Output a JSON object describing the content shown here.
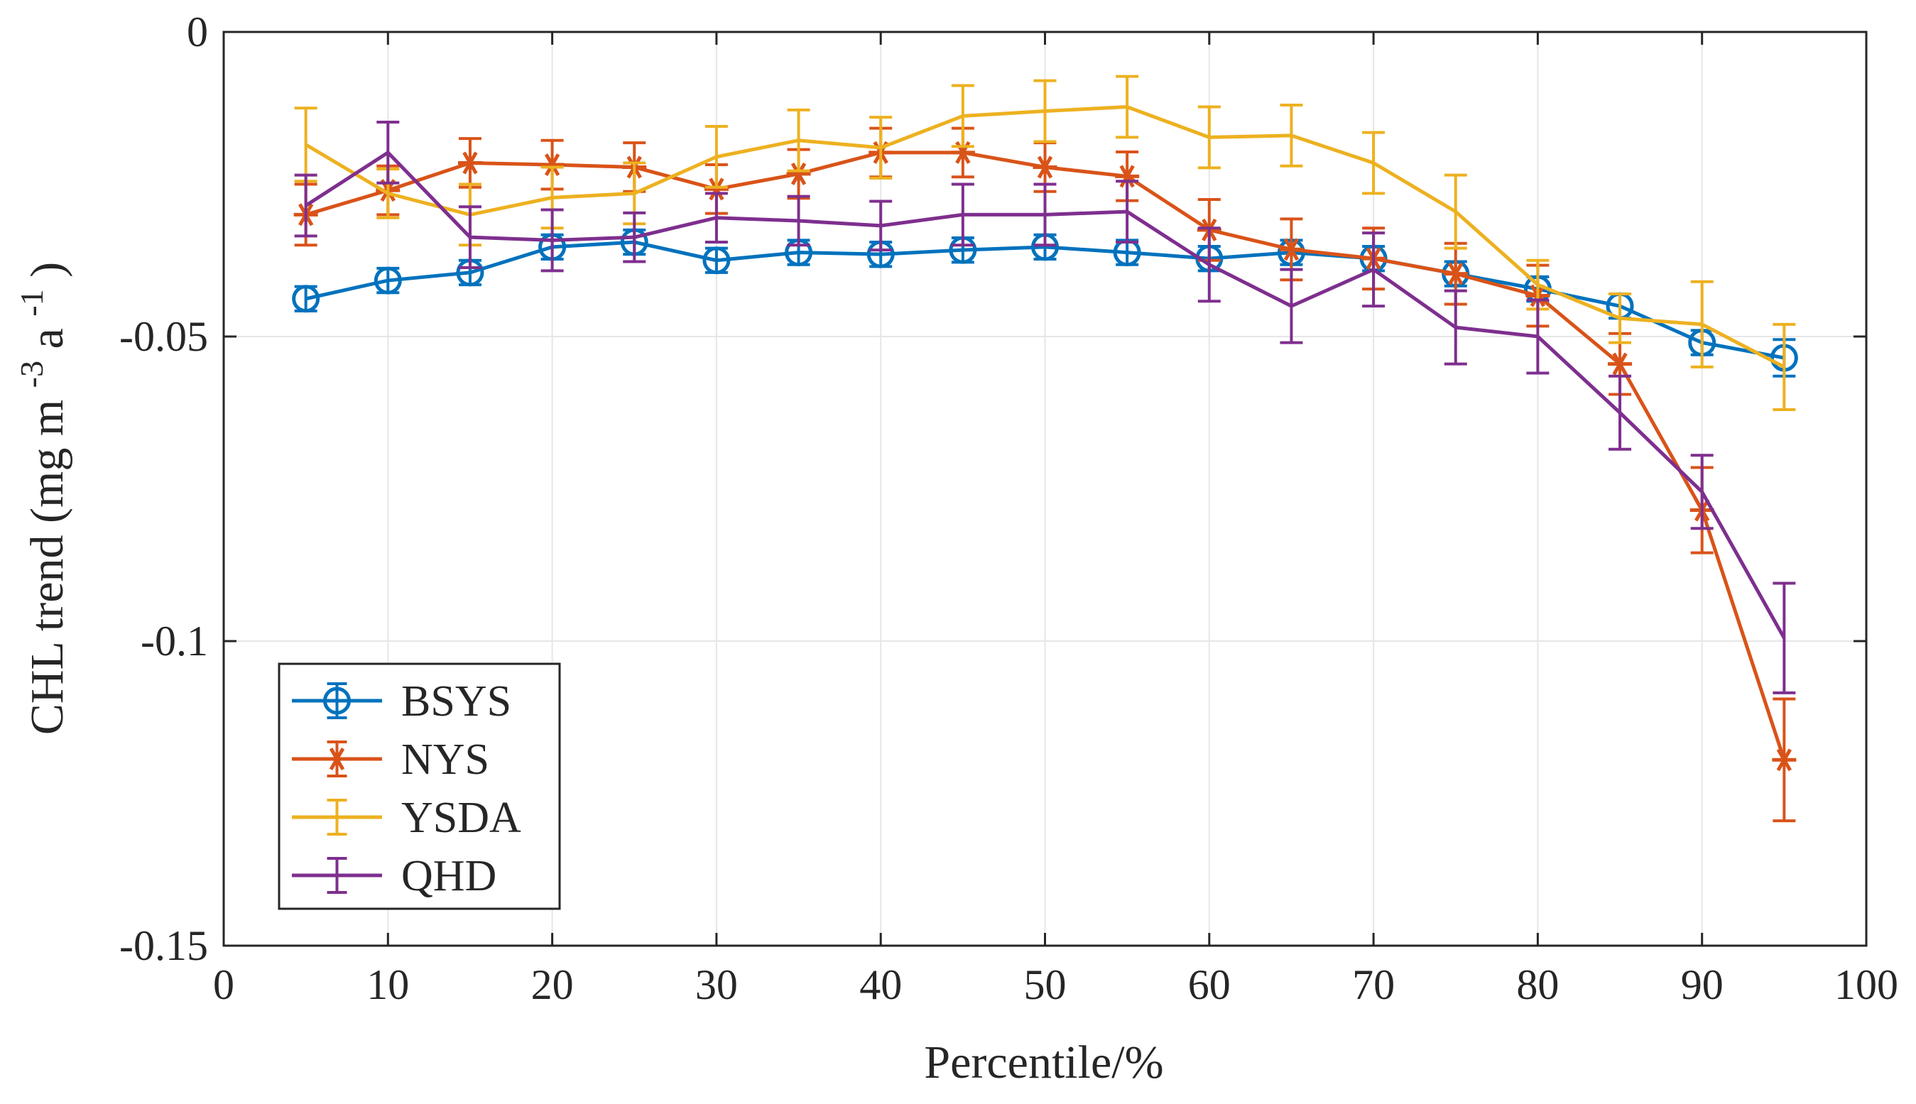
{
  "chart_data": {
    "type": "line",
    "title": "",
    "xlabel": "Percentile/%",
    "ylabel": {
      "main": "CHL trend (mg m",
      "exp1": "-3",
      "mid": " a",
      "exp2": "-1",
      "end": ")"
    },
    "xlim": [
      0,
      100
    ],
    "ylim": [
      -0.15,
      0
    ],
    "xticks": [
      0,
      10,
      20,
      30,
      40,
      50,
      60,
      70,
      80,
      90,
      100
    ],
    "xtick_labels": [
      "0",
      "10",
      "20",
      "30",
      "40",
      "50",
      "60",
      "70",
      "80",
      "90",
      "100"
    ],
    "yticks": [
      0,
      -0.05,
      -0.1,
      -0.15
    ],
    "ytick_labels": [
      "0",
      "-0.05",
      "-0.1",
      "-0.15"
    ],
    "grid": true,
    "legend_position": "bottom-left",
    "x": [
      5,
      10,
      15,
      20,
      25,
      30,
      35,
      40,
      45,
      50,
      55,
      60,
      65,
      70,
      75,
      80,
      85,
      90,
      95
    ],
    "series": [
      {
        "name": "BSYS",
        "color": "#0072bd",
        "marker": "circle",
        "values": [
          -0.0438,
          -0.0408,
          -0.0395,
          -0.0353,
          -0.0345,
          -0.0375,
          -0.0362,
          -0.0365,
          -0.0358,
          -0.0353,
          -0.0362,
          -0.0372,
          -0.0362,
          -0.0372,
          -0.0397,
          -0.0422,
          -0.045,
          -0.051,
          -0.0535
        ],
        "errors": [
          0.002,
          0.002,
          0.002,
          0.002,
          0.002,
          0.002,
          0.002,
          0.002,
          0.002,
          0.002,
          0.002,
          0.002,
          0.002,
          0.002,
          0.002,
          0.002,
          0.002,
          0.002,
          0.003
        ]
      },
      {
        "name": "NYS",
        "color": "#d95319",
        "marker": "star",
        "values": [
          -0.03,
          -0.026,
          -0.0215,
          -0.0218,
          -0.0222,
          -0.0258,
          -0.0233,
          -0.0198,
          -0.0198,
          -0.0222,
          -0.0237,
          -0.0325,
          -0.0357,
          -0.0372,
          -0.0397,
          -0.0433,
          -0.0545,
          -0.0785,
          -0.1195
        ],
        "errors": [
          0.005,
          0.004,
          0.004,
          0.004,
          0.004,
          0.004,
          0.004,
          0.004,
          0.004,
          0.004,
          0.004,
          0.005,
          0.005,
          0.005,
          0.005,
          0.005,
          0.005,
          0.007,
          0.01
        ]
      },
      {
        "name": "YSDA",
        "color": "#edb120",
        "marker": "none",
        "values": [
          -0.0185,
          -0.0265,
          -0.03,
          -0.0272,
          -0.0265,
          -0.0205,
          -0.0178,
          -0.019,
          -0.0138,
          -0.013,
          -0.0123,
          -0.0173,
          -0.017,
          -0.0215,
          -0.0295,
          -0.0415,
          -0.047,
          -0.048,
          -0.055
        ],
        "errors": [
          0.006,
          0.004,
          0.005,
          0.005,
          0.005,
          0.005,
          0.005,
          0.005,
          0.005,
          0.005,
          0.005,
          0.005,
          0.005,
          0.005,
          0.006,
          0.004,
          0.004,
          0.007,
          0.007
        ]
      },
      {
        "name": "QHD",
        "color": "#7e2f8e",
        "marker": "none",
        "values": [
          -0.0285,
          -0.0198,
          -0.0337,
          -0.0342,
          -0.0337,
          -0.0305,
          -0.031,
          -0.0318,
          -0.03,
          -0.03,
          -0.0295,
          -0.0382,
          -0.045,
          -0.039,
          -0.0485,
          -0.05,
          -0.0625,
          -0.0755,
          -0.0995
        ],
        "errors": [
          0.005,
          0.005,
          0.005,
          0.005,
          0.004,
          0.004,
          0.004,
          0.004,
          0.005,
          0.005,
          0.005,
          0.006,
          0.006,
          0.006,
          0.006,
          0.006,
          0.006,
          0.006,
          0.009
        ]
      }
    ]
  }
}
